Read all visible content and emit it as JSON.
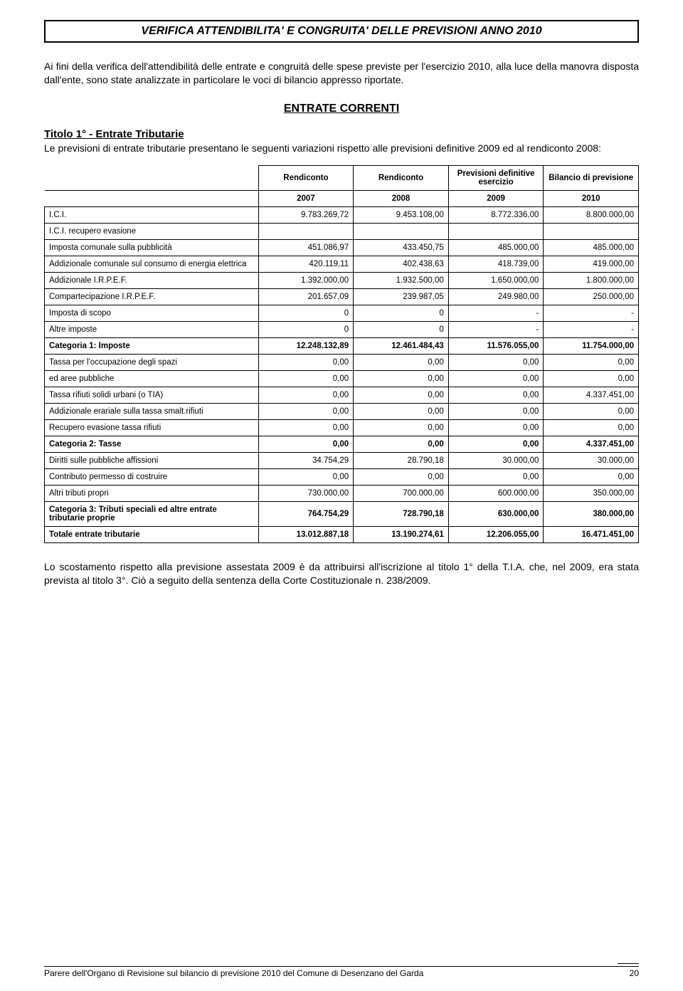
{
  "title": "VERIFICA ATTENDIBILITA' E CONGRUITA' DELLE PREVISIONI ANNO 2010",
  "intro": "Ai fini della verifica dell'attendibilità delle entrate e congruità delle spese previste per l'esercizio 2010, alla luce della manovra disposta dall'ente, sono state analizzate in particolare le voci di bilancio appresso riportate.",
  "sectionHeading": "ENTRATE CORRENTI",
  "subHeading": "Titolo 1° - Entrate Tributarie",
  "subText": "Le previsioni di entrate tributarie presentano le seguenti variazioni rispetto alle previsioni definitive 2009 ed al rendiconto 2008:",
  "headersTop": [
    "",
    "Rendiconto",
    "Rendiconto",
    "Previsioni definitive esercizio",
    "Bilancio di previsione"
  ],
  "headersYear": [
    "",
    "2007",
    "2008",
    "2009",
    "2010"
  ],
  "rows": [
    {
      "label": "I.C.I.",
      "v": [
        "9.783.269,72",
        "9.453.108,00",
        "8.772.336,00",
        "8.800.000,00"
      ],
      "bold": false
    },
    {
      "label": "I.C.I. recupero evasione",
      "v": [
        "",
        "",
        "",
        ""
      ],
      "bold": false
    },
    {
      "label": "Imposta comunale sulla pubblicità",
      "v": [
        "451.086,97",
        "433.450,75",
        "485.000,00",
        "485.000,00"
      ],
      "bold": false
    },
    {
      "label": "Addizionale comunale sul consumo di energia elettrica",
      "v": [
        "420.119,11",
        "402.438,63",
        "418.739,00",
        "419.000,00"
      ],
      "bold": false
    },
    {
      "label": "Addizionale I.R.P.E.F.",
      "v": [
        "1.392.000,00",
        "1.932.500,00",
        "1.650.000,00",
        "1.800.000,00"
      ],
      "bold": false
    },
    {
      "label": "Compartecipazione I.R.P.E.F.",
      "v": [
        "201.657,09",
        "239.987,05",
        "249.980,00",
        "250.000,00"
      ],
      "bold": false
    },
    {
      "label": "Imposta di scopo",
      "v": [
        "0",
        "0",
        "-",
        "-"
      ],
      "bold": false
    },
    {
      "label": "Altre imposte",
      "v": [
        "0",
        "0",
        "-",
        "-"
      ],
      "bold": false
    },
    {
      "label": "Categoria 1: Imposte",
      "v": [
        "12.248.132,89",
        "12.461.484,43",
        "11.576.055,00",
        "11.754.000,00"
      ],
      "bold": true
    },
    {
      "label": "Tassa per l'occupazione degli spazi",
      "v": [
        "0,00",
        "0,00",
        "0,00",
        "0,00"
      ],
      "bold": false
    },
    {
      "label": "ed aree pubbliche",
      "v": [
        "0,00",
        "0,00",
        "0,00",
        "0,00"
      ],
      "bold": false
    },
    {
      "label": "Tassa rifiuti solidi urbani (o TIA)",
      "v": [
        "0,00",
        "0,00",
        "0,00",
        "4.337.451,00"
      ],
      "bold": false
    },
    {
      "label": "Addizionale erariale sulla tassa smalt.rifiuti",
      "v": [
        "0,00",
        "0,00",
        "0,00",
        "0,00"
      ],
      "bold": false
    },
    {
      "label": "Recupero evasione tassa rifiuti",
      "v": [
        "0,00",
        "0,00",
        "0,00",
        "0,00"
      ],
      "bold": false
    },
    {
      "label": "Categoria 2: Tasse",
      "v": [
        "0,00",
        "0,00",
        "0,00",
        "4.337.451,00"
      ],
      "bold": true
    },
    {
      "label": "Diritti sulle pubbliche affissioni",
      "v": [
        "34.754,29",
        "28.790,18",
        "30.000,00",
        "30.000,00"
      ],
      "bold": false
    },
    {
      "label": "Contributo permesso di costruire",
      "v": [
        "0,00",
        "0,00",
        "0,00",
        "0,00"
      ],
      "bold": false
    },
    {
      "label": "Altri tributi propri",
      "v": [
        "730.000,00",
        "700.000,00",
        "600.000,00",
        "350.000,00"
      ],
      "bold": false
    },
    {
      "label": "Categoria 3: Tributi speciali ed altre entrate tributarie proprie",
      "v": [
        "764.754,29",
        "728.790,18",
        "630.000,00",
        "380.000,00"
      ],
      "bold": true
    },
    {
      "label": "Totale entrate tributarie",
      "v": [
        "13.012.887,18",
        "13.190.274,61",
        "12.206.055,00",
        "16.471.451,00"
      ],
      "bold": true
    }
  ],
  "closing": "Lo scostamento rispetto alla previsione assestata 2009 è da attribuirsi all'iscrizione al titolo 1° della T.I.A. che, nel 2009, era stata prevista al titolo 3°. Ciò a seguito della sentenza della Corte Costituzionale n. 238/2009.",
  "footerLeft": "Parere dell'Organo di Revisione sul bilancio di previsione 2010 del Comune di Desenzano del Garda",
  "footerRight": "20"
}
